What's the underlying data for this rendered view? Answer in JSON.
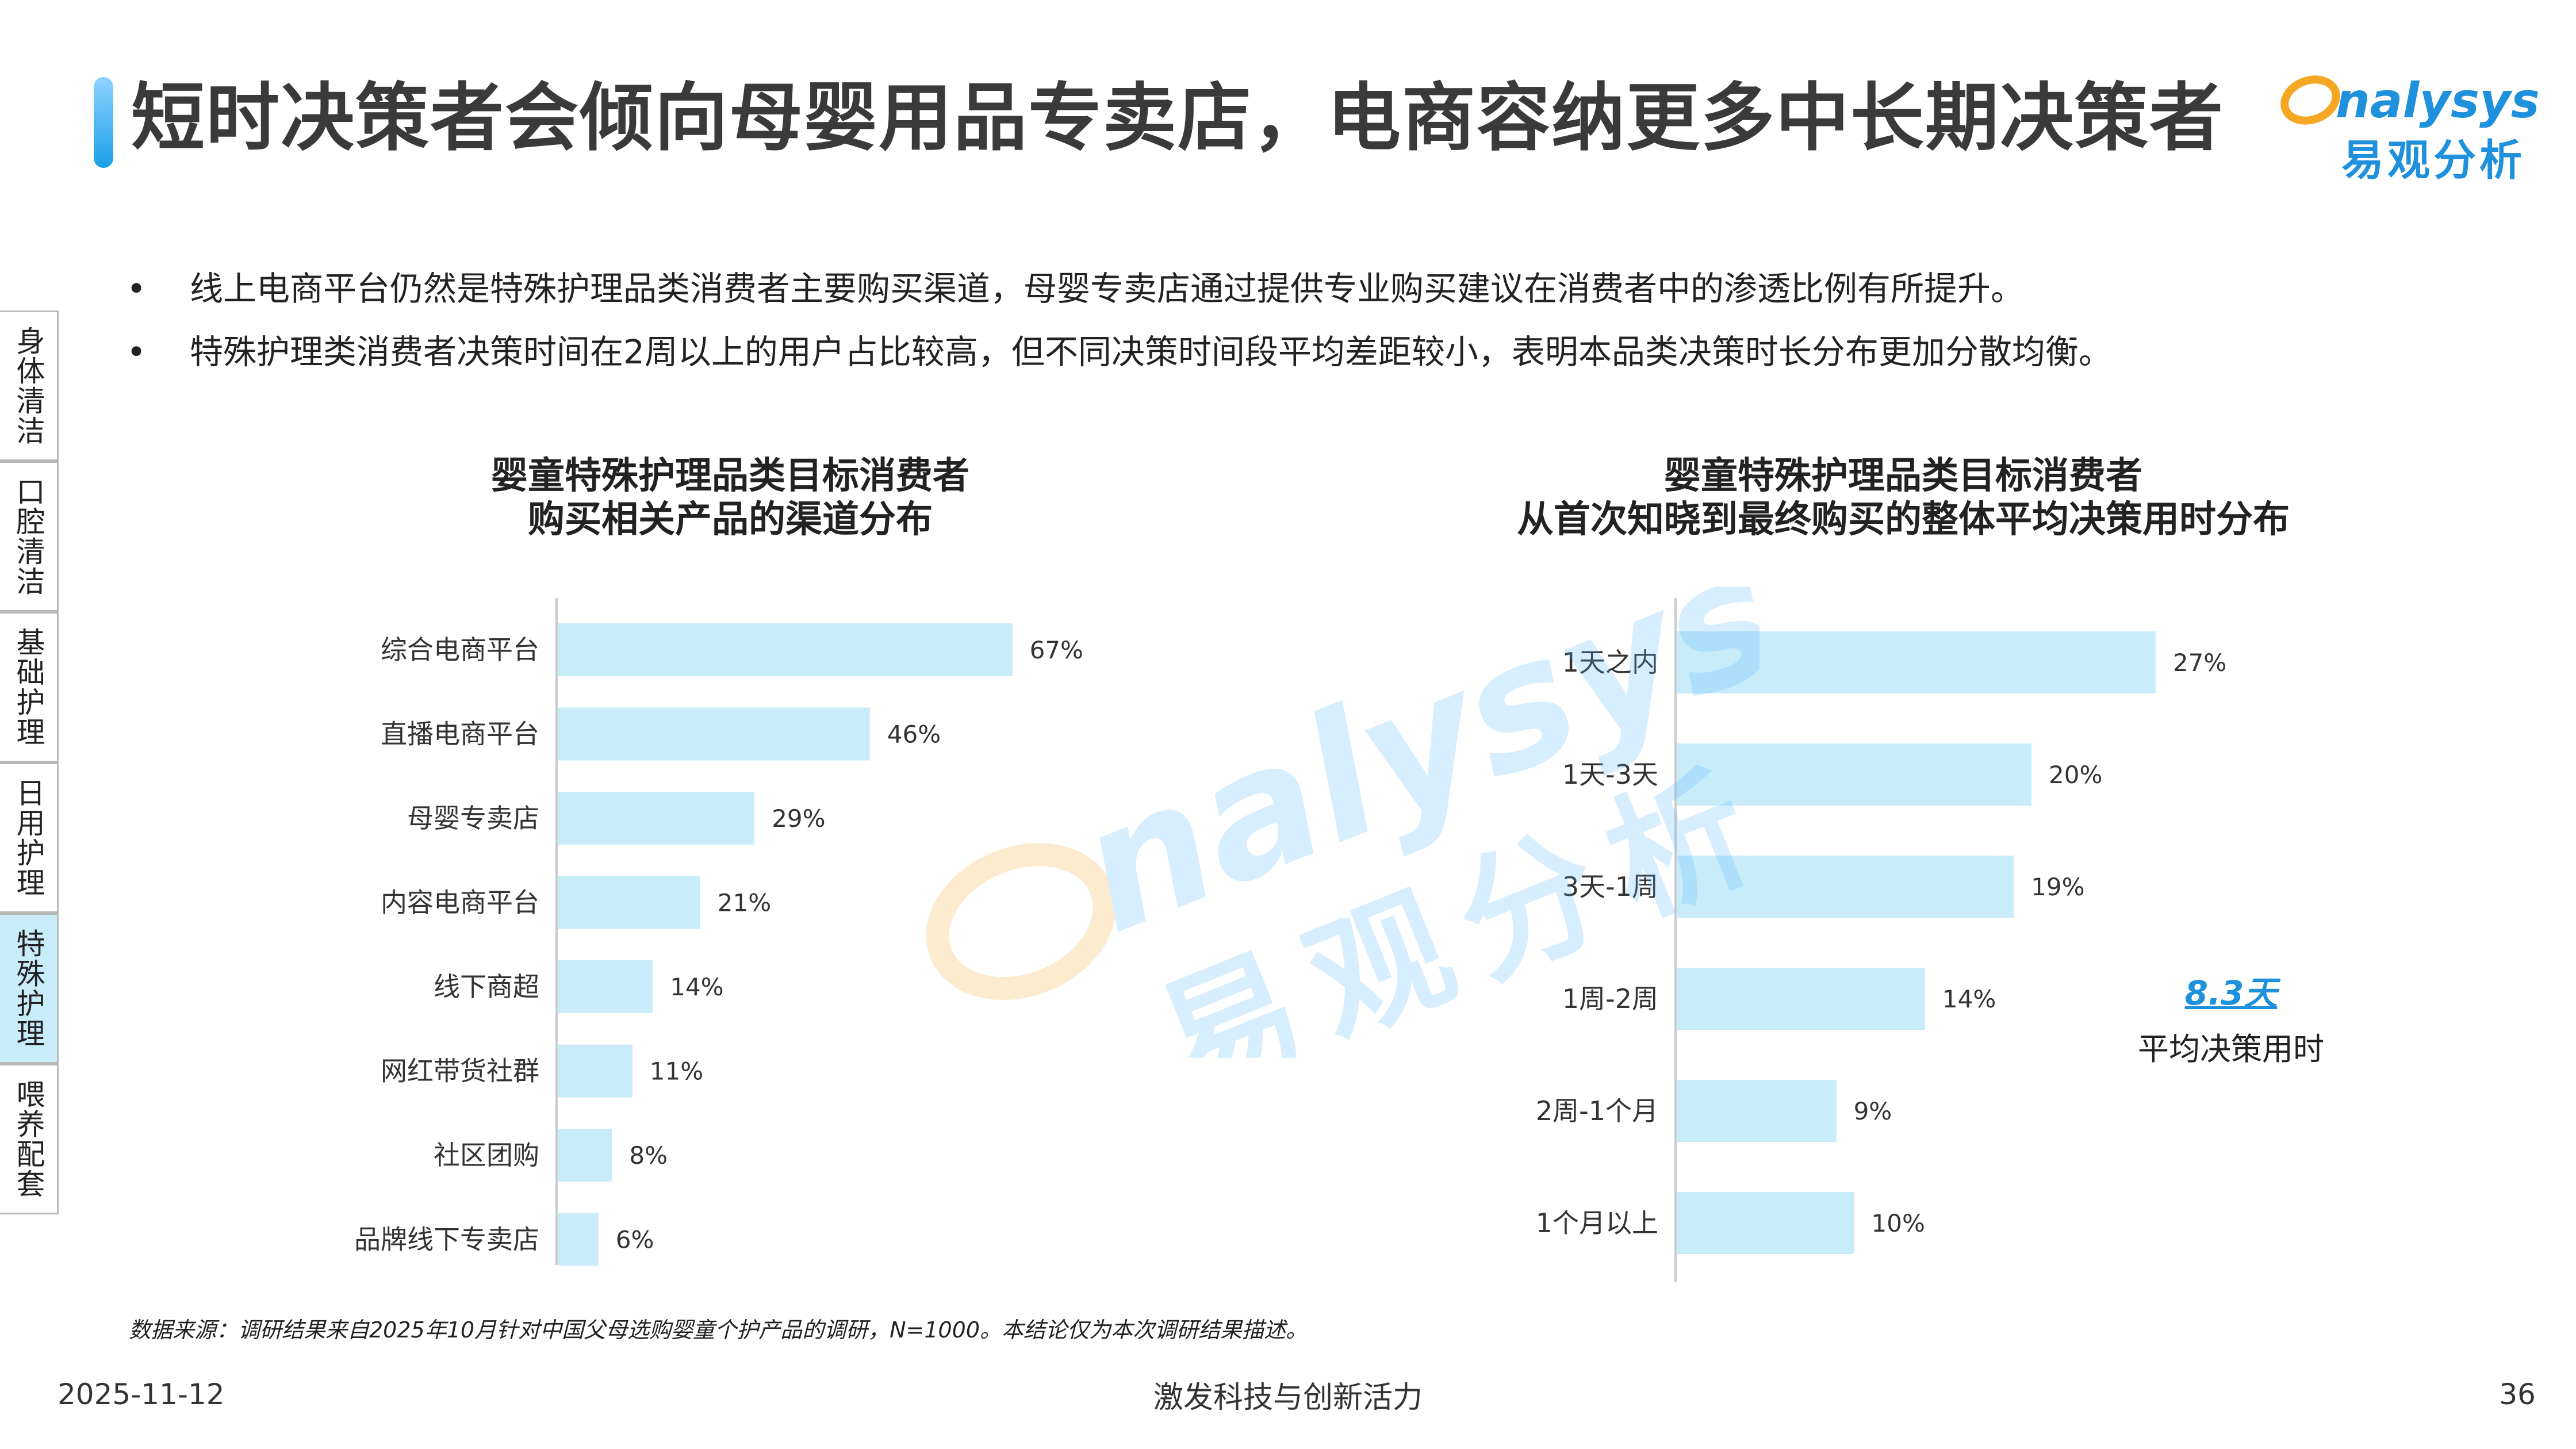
{
  "header": {
    "title": "短时决策者会倾向母婴用品专卖店，电商容纳更多中长期决策者",
    "logo_en": "nalysys",
    "logo_cn": "易观分析"
  },
  "bullets": [
    "线上电商平台仍然是特殊护理品类消费者主要购买渠道，母婴专卖店通过提供专业购买建议在消费者中的渗透比例有所提升。",
    "特殊护理类消费者决策时间在2周以上的用户占比较高，但不同决策时间段平均差距较小，表明本品类决策时长分布更加分散均衡。"
  ],
  "bullet_symbol": "•",
  "side_nav": {
    "items": [
      {
        "label": "身体清洁",
        "active": false
      },
      {
        "label": "口腔清洁",
        "active": false
      },
      {
        "label": "基础护理",
        "active": false
      },
      {
        "label": "日用护理",
        "active": false
      },
      {
        "label": "特殊护理",
        "active": true
      },
      {
        "label": "喂养配套",
        "active": false
      }
    ]
  },
  "chart_data": [
    {
      "type": "bar",
      "orientation": "horizontal",
      "title": [
        "婴童特殊护理品类目标消费者",
        "购买相关产品的渠道分布"
      ],
      "categories": [
        "综合电商平台",
        "直播电商平台",
        "母婴专卖店",
        "内容电商平台",
        "线下商超",
        "网红带货社群",
        "社区团购",
        "品牌线下专卖店"
      ],
      "values": [
        67,
        46,
        29,
        21,
        14,
        11,
        8,
        6
      ],
      "value_labels": [
        "67%",
        "46%",
        "29%",
        "21%",
        "14%",
        "11%",
        "8%",
        "6%"
      ],
      "unit": "%",
      "xlim": [
        0,
        100
      ],
      "grid": false,
      "bar_color": "#c9ecfb"
    },
    {
      "type": "bar",
      "orientation": "horizontal",
      "title": [
        "婴童特殊护理品类目标消费者",
        "从首次知晓到最终购买的整体平均决策用时分布"
      ],
      "categories": [
        "1天之内",
        "1天-3天",
        "3天-1周",
        "1周-2周",
        "2周-1个月",
        "1个月以上"
      ],
      "values": [
        27,
        20,
        19,
        14,
        9,
        10
      ],
      "value_labels": [
        "27%",
        "20%",
        "19%",
        "14%",
        "9%",
        "10%"
      ],
      "unit": "%",
      "xlim": [
        0,
        100
      ],
      "grid": false,
      "bar_color": "#c9ecfb",
      "annotation": {
        "value": "8.3天",
        "label": "平均决策用时"
      }
    }
  ],
  "footer": {
    "source": "数据来源：调研结果来自2025年10月针对中国父母选购婴童个护产品的调研，N=1000。本结论仅为本次调研结果描述。",
    "date": "2025-11-12",
    "slogan": "激发科技与创新活力",
    "page": "36"
  },
  "colors": {
    "accent_blue": "#1e90dc",
    "logo_orange": "#f5a623",
    "bar": "#c9ecfb",
    "nav_active": "#c9ecfb"
  }
}
